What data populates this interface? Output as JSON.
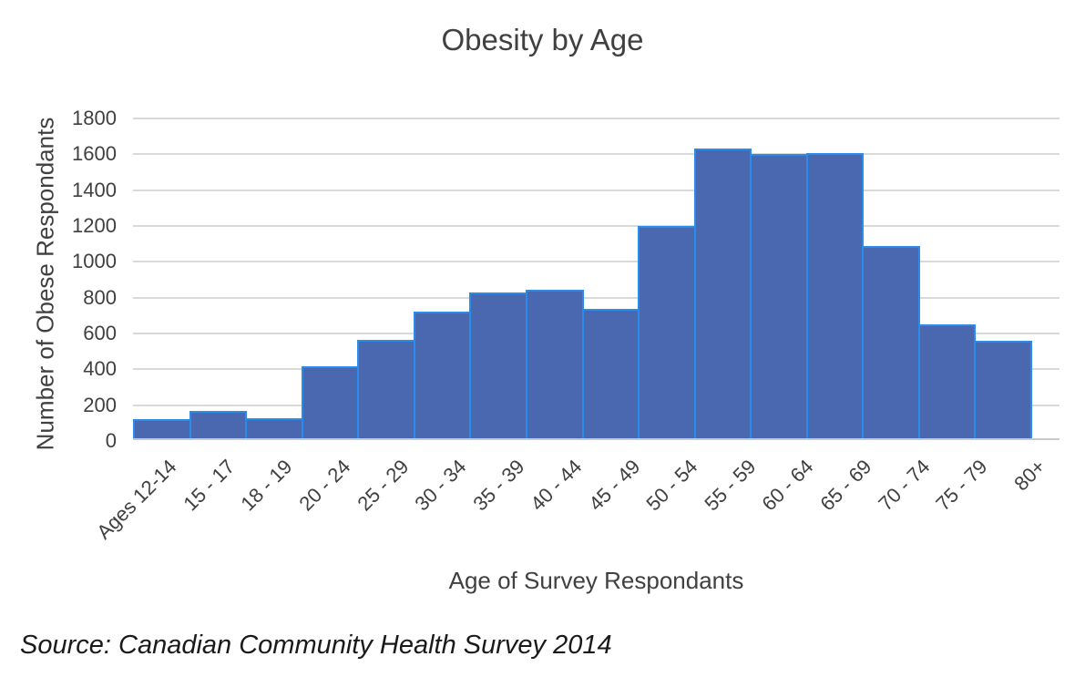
{
  "colors": {
    "bar_fill": "#4A68B0",
    "bar_border": "#2A8BE8",
    "gridline": "#D9D9D9",
    "axis_line": "#C9C9C9",
    "text": "#404040",
    "source_text": "#1a1a1a"
  },
  "chart_data": {
    "type": "bar",
    "title": "Obesity by Age",
    "xlabel": "Age of Survey Respondants",
    "ylabel": "Number of Obese Respondants",
    "source_note": "Source: Canadian Community Health Survey 2014",
    "categories": [
      "Ages 12-14",
      "15 - 17",
      "18 - 19",
      "20 - 24",
      "25 - 29",
      "30 - 34",
      "35 - 39",
      "40 - 44",
      "45 - 49",
      "50 - 54",
      "55 - 59",
      "60 - 64",
      "65 - 69",
      "70 - 74",
      "75 - 79",
      "80+"
    ],
    "values": [
      115,
      165,
      120,
      410,
      560,
      715,
      825,
      840,
      730,
      1195,
      1625,
      1595,
      1600,
      1085,
      645,
      555
    ],
    "ylim": [
      0,
      1800
    ],
    "ytick_interval": 200,
    "yticks": [
      1800,
      1600,
      1400,
      1200,
      1000,
      800,
      600,
      400,
      200,
      0
    ],
    "grid": true,
    "legend": false,
    "bar_gap": 0,
    "x_tick_rotation": -45
  }
}
